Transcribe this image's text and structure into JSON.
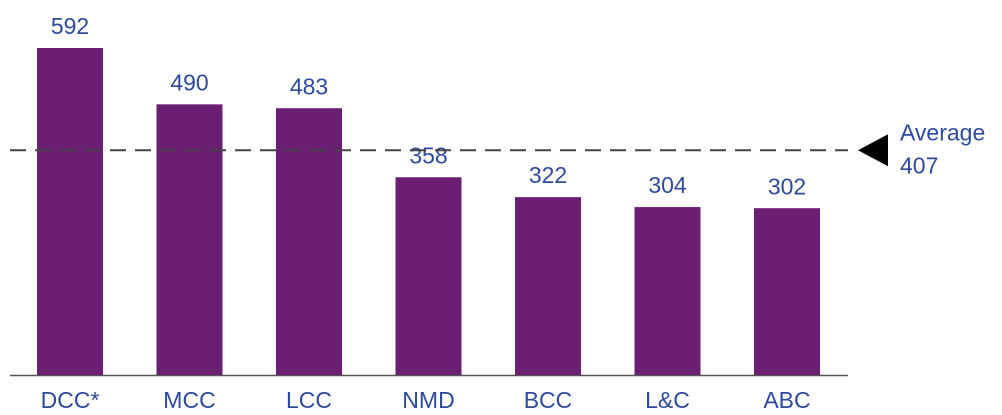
{
  "chart_data": {
    "type": "bar",
    "categories": [
      "DCC*",
      "MCC",
      "LCC",
      "NMD",
      "BCC",
      "L&C",
      "ABC"
    ],
    "values": [
      592,
      490,
      483,
      358,
      322,
      304,
      302
    ],
    "color": "#6b1f73",
    "label_color": "#2d4a9c",
    "average": {
      "label": "Average",
      "value": 407
    }
  }
}
